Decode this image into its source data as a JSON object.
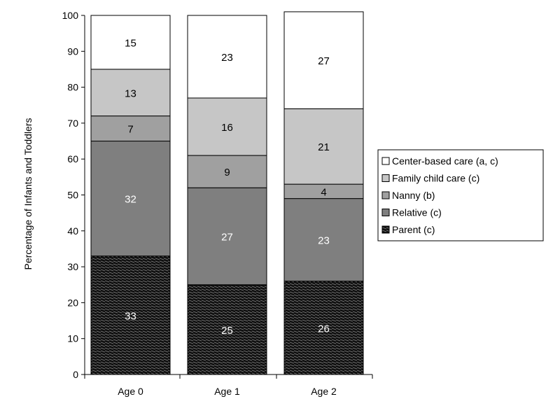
{
  "chart_data": {
    "type": "bar",
    "stacked": true,
    "title": "",
    "xlabel": "",
    "ylabel": "Percentage of Infants and Toddlers",
    "ylim": [
      0,
      100
    ],
    "yticks": [
      0,
      10,
      20,
      30,
      40,
      50,
      60,
      70,
      80,
      90,
      100
    ],
    "categories": [
      "Age 0",
      "Age 1",
      "Age 2"
    ],
    "series": [
      {
        "name": "Parent (c)",
        "values": [
          33,
          25,
          26
        ],
        "color": "#1a1a1a",
        "pattern": "hatched",
        "label_color": "#ffffff"
      },
      {
        "name": "Relative (c)",
        "values": [
          32,
          27,
          23
        ],
        "color": "#7f7f7f",
        "label_color": "#ffffff"
      },
      {
        "name": "Nanny (b)",
        "values": [
          7,
          9,
          4
        ],
        "color": "#a0a0a0",
        "label_color": "#000000"
      },
      {
        "name": "Family child care (c)",
        "values": [
          13,
          16,
          21
        ],
        "color": "#c6c6c6",
        "label_color": "#000000"
      },
      {
        "name": "Center-based care (a, c)",
        "values": [
          15,
          23,
          27
        ],
        "color": "#ffffff",
        "label_color": "#000000"
      }
    ],
    "legend_order": [
      "Center-based care (a, c)",
      "Family child care (c)",
      "Nanny (b)",
      "Relative (c)",
      "Parent (c)"
    ],
    "legend_position": "right",
    "grid": false
  }
}
